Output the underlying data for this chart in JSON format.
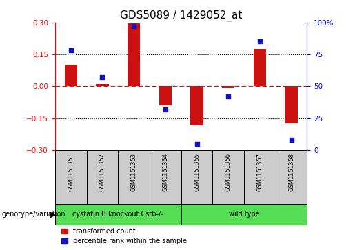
{
  "title": "GDS5089 / 1429052_at",
  "samples": [
    "GSM1151351",
    "GSM1151352",
    "GSM1151353",
    "GSM1151354",
    "GSM1151355",
    "GSM1151356",
    "GSM1151357",
    "GSM1151358"
  ],
  "red_bars": [
    0.1,
    0.01,
    0.295,
    -0.09,
    -0.185,
    -0.01,
    0.175,
    -0.175
  ],
  "blue_dots_right_axis": [
    78,
    57,
    97,
    32,
    5,
    42,
    85,
    8
  ],
  "ylim": [
    -0.3,
    0.3
  ],
  "right_ylim": [
    0,
    100
  ],
  "yticks_left": [
    -0.3,
    -0.15,
    0,
    0.15,
    0.3
  ],
  "yticks_right": [
    0,
    25,
    50,
    75,
    100
  ],
  "hlines": [
    0.15,
    0,
    -0.15
  ],
  "hline_styles": [
    "dotted",
    "dashed_red",
    "dotted"
  ],
  "bar_color": "#CC1111",
  "dot_color": "#1111CC",
  "group1_label": "cystatin B knockout Cstb-/-",
  "group2_label": "wild type",
  "group1_count": 4,
  "group2_count": 4,
  "group_row_label": "genotype/variation",
  "legend_red": "transformed count",
  "legend_blue": "percentile rank within the sample",
  "title_fontsize": 11,
  "tick_fontsize": 7.5,
  "label_fontsize": 8,
  "group_fill_color": "#55DD55",
  "sample_box_color": "#CCCCCC",
  "bar_width": 0.4,
  "figsize": [
    5.15,
    3.63
  ],
  "dpi": 100
}
